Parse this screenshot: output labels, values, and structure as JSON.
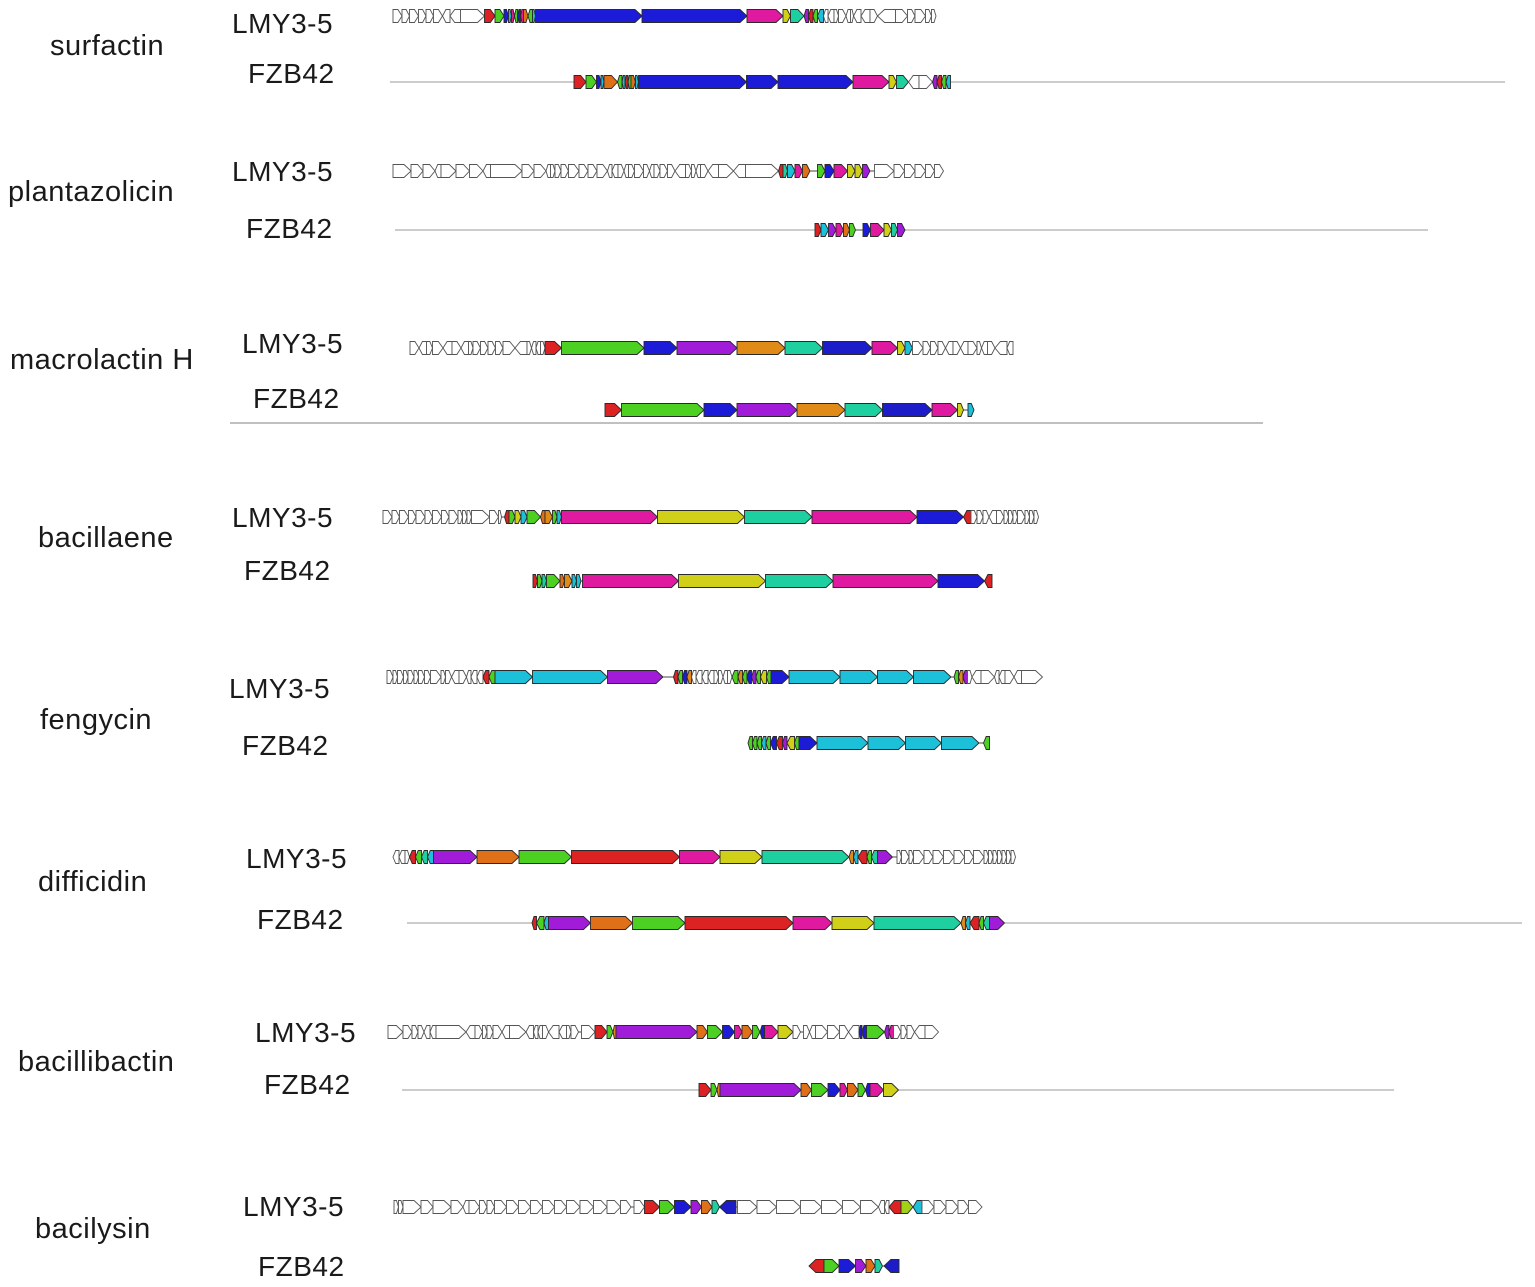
{
  "colors": {
    "red": "#dc2222",
    "green": "#4cd022",
    "blue": "#1c1cd8",
    "navy": "#1c1cc8",
    "royal": "#1e6ad8",
    "cyan": "#1cc0d8",
    "teal": "#1ed0a0",
    "spring": "#20d07a",
    "magenta": "#e01aa0",
    "pink": "#e0208a",
    "crimson": "#d81c52",
    "violet": "#a01cd8",
    "purple": "#6a1cd8",
    "orange": "#e07018",
    "amber": "#e08a18",
    "gold": "#e0b018",
    "yellow": "#d0d018",
    "lime": "#a0d018",
    "white": "#ffffff"
  },
  "clusters": [
    {
      "name": "surfactin",
      "tracks": [
        {
          "label": "LMY3-5",
          "baseline": false,
          "genes": "w6 w5 w6 w5 w5 w6 w-5 w-7 w16 r7 g6 b3 c2 p2 g-2 b-2 p-2 o3 g-3 c1 b71 b70 m24 y5 t9 v-3 r-3 g-3 c-4 w-3 w-4 w3 w5 w-3 w2 w-5 w-6 w5 w-12 w8 w5 w7 w4 w3"
        },
        {
          "label": "FZB42",
          "baseline": true,
          "genes": "r8 g7 b3 c2 o9 g-3 c-2 r-2 g-2 o3 c1 b72 b21 b50 m24 y5 t8 w-7 w9 v-3 r-3 g-3 c-3"
        }
      ]
    },
    {
      "name": "plantazolicin",
      "tracks": [
        {
          "label": "LMY3-5",
          "baseline": false,
          "genes": "w12 w8 w8 w-4 w10 w9 w9 w-5 w21 w8 w8 w-3 w3 w4 w5 w7 w6 w6 w7 w-3 w-4 w4 w-3 w4 w6 w4 w-3 w4 w5 w5 w-7 w4 w3 w-3 w5 w-7 w10 w-8 w22 r-3 t3 c5 m5 o5 g5 b6 m9 y5 y5 v5 w13 w7 w7 w7 w6 w6",
          "gaps": {
            "44": 5,
            "50": 3,
            "57": 3
          }
        },
        {
          "label": "FZB42",
          "baseline": true,
          "genes": "r4 c5 v5 m5 o4 g4 b5 m9 y5 t4 v5",
          "gaps": {
            "6": 5
          }
        }
      ]
    },
    {
      "name": "macrolactin H",
      "tracks": [
        {
          "label": "LMY3-5",
          "baseline": false,
          "genes": "w6 w-5 w4 w7 w-6 w6 w-5 w3 w5 w5 w5 w5 w8 w-8 w3 w-3 w-3 w3 r11 g55 b22 v40 a32 t25 n33 m17 y5 c5 w7 w5 w5 w5 w-5 w5 w-5 w6 w3 w-4 w5 w-8 w-4"
        },
        {
          "label": "FZB42",
          "baseline": false,
          "underline": true,
          "genes": "r11 g55 b22 v40 a32 t25 n33 m17 y4 c4",
          "gaps": {
            "9": 3
          }
        }
      ]
    },
    {
      "name": "bacillaene",
      "tracks": [
        {
          "label": "LMY3-5",
          "baseline": false,
          "genes": "w6 w5 w6 w5 w6 w5 w6 w5 w6 w3 w3 w3 w12 w6 w2 r-3 g4 y4 c4 g9 o-3 a5 g3 c3 m64 y58 t45 m70 b31 r-5 w4 w4 w4 w-5 w5 w3 w3 w3 w5 w3 w3 w3",
          "gaps": {
            "15": 2
          }
        },
        {
          "label": "FZB42",
          "baseline": false,
          "genes": "r3 g3 t3 g9 o3 a5 c3 c3 m64 y58 t45 m70 b31 r-5",
          "gaps": {
            "8": 1
          }
        }
      ]
    },
    {
      "name": "fengycin",
      "tracks": [
        {
          "label": "LMY3-5",
          "baseline": false,
          "genes": "w4 w3 w4 w3 w4 w3 w4 w4 w7 w3 w4 w-5 w5 w-3 w-4 w-4 r-4 g-4 c25 c50 v37 r-3 g-3 b-3 a-3 w-3 w-4 w-4 w-4 w3 w3 w-3 w3 g-4 a-3 g-3 b-3 v-3 g-3 y-4 g-3 b12 c34 c25 c24 c25 g-3 a-3 v-3 w3 w-6 w9 w-3 w-4 w6 w-5 w14",
          "gaps": {
            "21": 7,
            "46": 2
          }
        },
        {
          "label": "FZB42",
          "baseline": false,
          "genes": "g-3 g-3 g-3 c-3 g-3 b-4 r-4 v-3 y-5 g-3 b12 c34 c25 c24 c25 g-4",
          "gaps": {
            "15": 3
          }
        }
      ]
    },
    {
      "name": "difficidin",
      "tracks": [
        {
          "label": "LMY3-5",
          "baseline": false,
          "genes": "w-4 w-4 w3 r-4 g-4 t-4 c-4 v29 o28 g35 r72 m27 y28 t58 a-3 c-3 r-6 g-3 t-4 v10 w3 w5 w3 w7 w6 w7 w7 w7 w6 w7 w3 w3 w3 w3 w3 w3 w3",
          "gaps": {
            "20": 3
          }
        },
        {
          "label": "FZB42",
          "baseline": true,
          "genes": "r-3 g-5 c-3 v28 o28 g35 r72 m26 y28 t58 a-3 c-3 r-6 g-3 t-4 v10"
        }
      ]
    },
    {
      "name": "bacillibactin",
      "tracks": [
        {
          "label": "LMY3-5",
          "baseline": false,
          "genes": "w10 w6 w4 w4 w-4 w-4 w20 w-6 w5 w3 w4 w6 w-5 w11 w-5 w-3 w-3 w4 w-7 w-5 w3 w5 w9 r8 g4 a-2 v54 o7 g10 b8 m5 o7 g5 b-3 m9 y10 w5 w4 w-4 w8 w8 w6 w-7 n-2 b-3 g12 v-3 m-3 w5 w4 w5 w-7 w9",
          "gaps": {
            "22": 2,
            "37": 2
          }
        },
        {
          "label": "FZB42",
          "baseline": true,
          "genes": "r8 g4 a-2 v54 o7 g11 b8 m5 o7 g5 b-3 m9 y10"
        }
      ]
    },
    {
      "name": "bacilysin",
      "tracks": [
        {
          "label": "LMY3-5",
          "baseline": false,
          "genes": "w3 w3 w12 w8 w12 w8 w-4 w7 w5 w5 w8 w8 w8 w8 w8 w8 w9 w9 w9 w9 w7 w7 r10 g10 b11 v7 o7 t5 n-11 w13 w13 w16 w14 w14 w12 w12 w-4 w-3 r-8 l8 c-6 w8 w8 w8 w7 w9",
          "gaps": {
            "29": 1,
            "21": 2
          }
        },
        {
          "label": "FZB42",
          "baseline": false,
          "genes": "r-10 g10 b11 v7 o6 t5 n-10",
          "gaps": {
            "6": 1
          }
        }
      ]
    }
  ]
}
